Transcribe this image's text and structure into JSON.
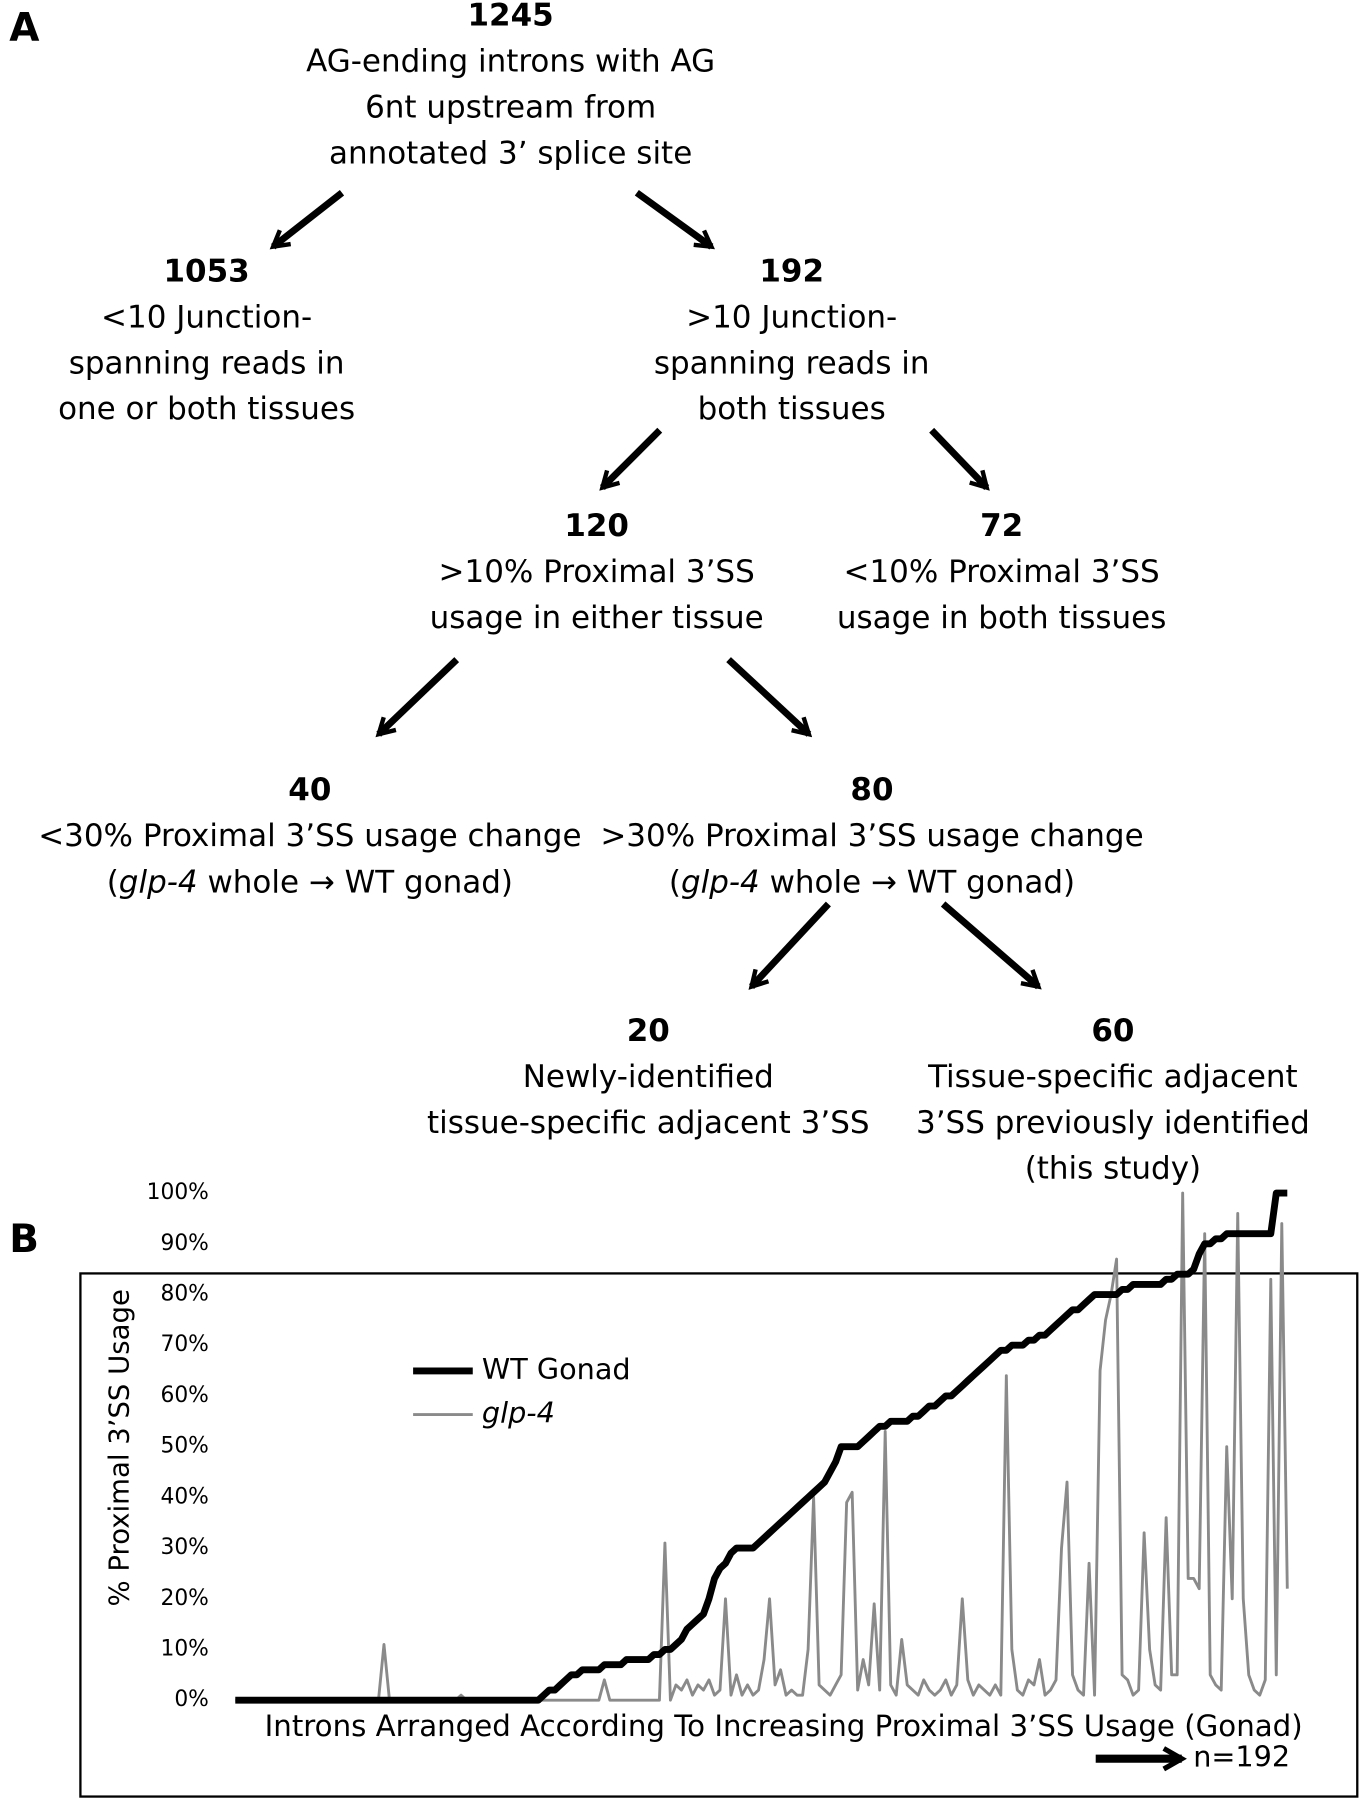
{
  "panel_a": {
    "label": "A",
    "nodes": [
      {
        "count": "1245",
        "lines": [
          "AG-ending introns with AG",
          "6nt upstream from",
          "annotated 3’ splice site"
        ]
      },
      {
        "count": "1053",
        "lines": [
          "<10 Junction-",
          "spanning reads in",
          "one or both tissues"
        ]
      },
      {
        "count": "192",
        "lines": [
          ">10 Junction-",
          "spanning reads in",
          "both tissues"
        ]
      },
      {
        "count": "120",
        "lines": [
          ">10% Proximal 3’SS",
          "usage in either tissue"
        ]
      },
      {
        "count": "72",
        "lines": [
          "<10% Proximal 3’SS",
          "usage in both tissues"
        ]
      },
      {
        "count": "40",
        "lines": [
          "<30% Proximal 3’SS usage change",
          {
            "pre": "(",
            "italic": "glp-4",
            "post": " whole → WT gonad)"
          }
        ]
      },
      {
        "count": "80",
        "lines": [
          ">30% Proximal 3’SS usage change",
          {
            "pre": "(",
            "italic": "glp-4",
            "post": " whole → WT gonad)"
          }
        ]
      },
      {
        "count": "20",
        "lines": [
          "Newly-identified",
          "tissue-specific adjacent 3’SS"
        ]
      },
      {
        "count": "60",
        "lines": [
          "Tissue-specific adjacent",
          "3’SS previously identified",
          "(this study)"
        ]
      }
    ]
  },
  "panel_b": {
    "label": "B"
  },
  "chart_data": {
    "type": "line",
    "x_label": "Introns Arranged According To Increasing Proximal 3’SS Usage (Gonad)",
    "y_label": "% Proximal 3’SS Usage",
    "annotation": "n=192",
    "ylim": [
      0,
      100
    ],
    "yticks": [
      {
        "value": 0,
        "label": "0%"
      },
      {
        "value": 10,
        "label": "10%"
      },
      {
        "value": 20,
        "label": "20%"
      },
      {
        "value": 30,
        "label": "30%"
      },
      {
        "value": 40,
        "label": "40%"
      },
      {
        "value": 50,
        "label": "50%"
      },
      {
        "value": 60,
        "label": "60%"
      },
      {
        "value": 70,
        "label": "70%"
      },
      {
        "value": 80,
        "label": "80%"
      },
      {
        "value": 90,
        "label": "90%"
      },
      {
        "value": 100,
        "label": "100%"
      }
    ],
    "grid": false,
    "legend": "upper left",
    "series": [
      {
        "name": "WT Gonad",
        "color": "#000000",
        "width": 6,
        "italic": false,
        "values": [
          0,
          0,
          0,
          0,
          0,
          0,
          0,
          0,
          0,
          0,
          0,
          0,
          0,
          0,
          0,
          0,
          0,
          0,
          0,
          0,
          0,
          0,
          0,
          0,
          0,
          0,
          0,
          0,
          0,
          0,
          0,
          0,
          0,
          0,
          0,
          0,
          0,
          0,
          0,
          0,
          0,
          0,
          0,
          0,
          0,
          0,
          0,
          0,
          0,
          0,
          0,
          0,
          0,
          0,
          0,
          0,
          1,
          2,
          2,
          3,
          4,
          5,
          5,
          6,
          6,
          6,
          6,
          7,
          7,
          7,
          7,
          8,
          8,
          8,
          8,
          8,
          9,
          9,
          10,
          10,
          11,
          12,
          14,
          15,
          16,
          17,
          20,
          24,
          26,
          27,
          29,
          30,
          30,
          30,
          30,
          31,
          32,
          33,
          34,
          35,
          36,
          37,
          38,
          39,
          40,
          41,
          42,
          43,
          45,
          47,
          50,
          50,
          50,
          50,
          51,
          52,
          53,
          54,
          54,
          55,
          55,
          55,
          55,
          56,
          56,
          57,
          58,
          58,
          59,
          60,
          60,
          61,
          62,
          63,
          64,
          65,
          66,
          67,
          68,
          69,
          69,
          70,
          70,
          70,
          71,
          71,
          72,
          72,
          73,
          74,
          75,
          76,
          77,
          77,
          78,
          79,
          80,
          80,
          80,
          80,
          80,
          81,
          81,
          82,
          82,
          82,
          82,
          82,
          82,
          83,
          83,
          84,
          84,
          84,
          85,
          88,
          90,
          90,
          91,
          91,
          92,
          92,
          92,
          92,
          92,
          92,
          92,
          92,
          92,
          100,
          100,
          100
        ]
      },
      {
        "name": "glp-4",
        "color": "#8a8a8a",
        "width": 2.5,
        "italic": true,
        "values": [
          0,
          0,
          0,
          0,
          0,
          0,
          0,
          0,
          0,
          0,
          0,
          0,
          0,
          0,
          0,
          0,
          0,
          0,
          0,
          0,
          0,
          0,
          0,
          0,
          0,
          0,
          0,
          11,
          0,
          0,
          0,
          0,
          0,
          0,
          0,
          0,
          0,
          0,
          0,
          0,
          0,
          1,
          0,
          0,
          0,
          0,
          0,
          0,
          0,
          0,
          0,
          0,
          0,
          0,
          0,
          0,
          0,
          0,
          0,
          0,
          0,
          0,
          0,
          0,
          0,
          0,
          0,
          4,
          0,
          0,
          0,
          0,
          0,
          0,
          0,
          0,
          0,
          0,
          31,
          0,
          3,
          2,
          4,
          1,
          3,
          2,
          4,
          1,
          2,
          20,
          1,
          5,
          1,
          3,
          1,
          2,
          8,
          20,
          3,
          6,
          1,
          2,
          1,
          1,
          10,
          40,
          3,
          2,
          1,
          3,
          5,
          39,
          41,
          2,
          8,
          3,
          19,
          2,
          53,
          3,
          1,
          12,
          3,
          2,
          1,
          4,
          2,
          1,
          2,
          4,
          1,
          3,
          20,
          4,
          1,
          3,
          2,
          1,
          3,
          1,
          64,
          10,
          2,
          1,
          4,
          3,
          8,
          1,
          2,
          4,
          30,
          43,
          5,
          2,
          1,
          27,
          1,
          65,
          75,
          80,
          87,
          5,
          4,
          1,
          2,
          33,
          10,
          3,
          2,
          36,
          5,
          5,
          100,
          24,
          24,
          22,
          92,
          5,
          3,
          2,
          50,
          20,
          96,
          20,
          5,
          2,
          1,
          4,
          83,
          5,
          94,
          22
        ]
      }
    ]
  }
}
